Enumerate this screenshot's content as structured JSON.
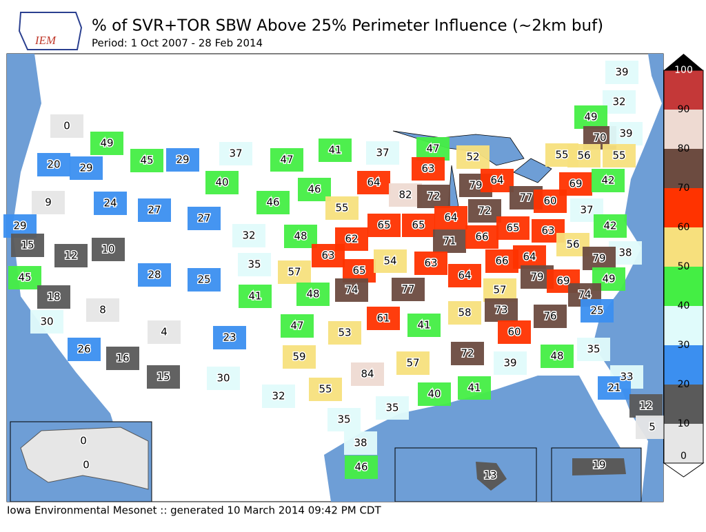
{
  "header": {
    "title": "% of SVR+TOR SBW Above 25% Perimeter Influence (~2km buf)",
    "subtitle": "Period: 1 Oct 2007 - 28 Feb 2014",
    "logo_text": "IEM"
  },
  "legend": {
    "ticks": [
      0,
      10,
      20,
      30,
      40,
      50,
      60,
      70,
      80,
      90,
      100
    ],
    "colors": [
      "#e6e6e6",
      "#5a5a5a",
      "#3b8ff0",
      "#e0fbfb",
      "#44ee44",
      "#f7e07d",
      "#ff3300",
      "#6c4b40",
      "#eedad2",
      "#c43838"
    ]
  },
  "regions": [
    0,
    49,
    45,
    29,
    37,
    47,
    41,
    37,
    47,
    52,
    39,
    32,
    49,
    70,
    39,
    55,
    56,
    55,
    20,
    29,
    64,
    63,
    79,
    64,
    69,
    42,
    9,
    24,
    27,
    40,
    46,
    46,
    82,
    72,
    77,
    60,
    37,
    55,
    27,
    29,
    65,
    65,
    64,
    72,
    65,
    63,
    42,
    15,
    10,
    12,
    32,
    48,
    62,
    71,
    66,
    56,
    38,
    79,
    35,
    63,
    65,
    54,
    63,
    66,
    64,
    28,
    25,
    57,
    45,
    74,
    77,
    64,
    79,
    69,
    49,
    18,
    41,
    48,
    57,
    74,
    58,
    73,
    76,
    25,
    8,
    30,
    61,
    41,
    47,
    53,
    4,
    23,
    60,
    26,
    16,
    59,
    84,
    72,
    48,
    35,
    57,
    39,
    15,
    30,
    33,
    55,
    40,
    41,
    21,
    32,
    35,
    12,
    35,
    0,
    5,
    38,
    46,
    0,
    13,
    19
  ],
  "footer": "Iowa Environmental Mesonet :: generated 10 March 2014 09:42 PM CDT"
}
